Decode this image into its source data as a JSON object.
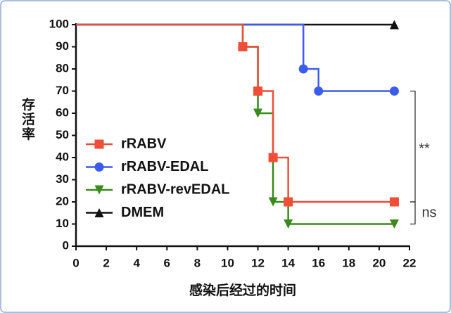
{
  "chart_data": {
    "type": "step",
    "y_label": "存活率",
    "x_label": "感染后经过的时间",
    "xlim": [
      0,
      22
    ],
    "xticks": [
      0,
      2,
      4,
      6,
      8,
      10,
      12,
      14,
      16,
      18,
      20,
      22
    ],
    "ylim": [
      0,
      100
    ],
    "yticks": [
      0,
      10,
      20,
      30,
      40,
      50,
      60,
      70,
      80,
      90,
      100
    ],
    "series": [
      {
        "name": "rRABV",
        "color": "#f04e37",
        "marker": "square",
        "x": [
          0,
          11,
          12,
          13,
          14,
          21
        ],
        "values": [
          100,
          90,
          70,
          40,
          20,
          20
        ]
      },
      {
        "name": "rRABV-EDAL",
        "color": "#3c5cf0",
        "marker": "circle",
        "x": [
          0,
          15,
          16,
          21
        ],
        "values": [
          100,
          80,
          70,
          70
        ]
      },
      {
        "name": "rRABV-revEDAL",
        "color": "#3a8a1c",
        "marker": "triangle-down",
        "x": [
          0,
          11,
          12,
          13,
          14,
          21
        ],
        "values": [
          100,
          90,
          60,
          20,
          10,
          10
        ]
      },
      {
        "name": "DMEM",
        "color": "#111111",
        "marker": "triangle-up",
        "x": [
          0,
          21
        ],
        "values": [
          100,
          100
        ]
      }
    ],
    "annotations": [
      "**",
      "ns"
    ]
  }
}
